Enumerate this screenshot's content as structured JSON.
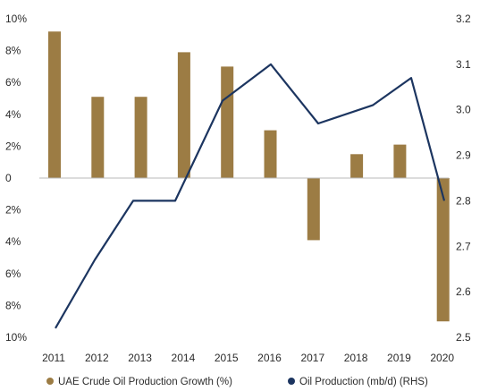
{
  "chart_data": {
    "type": "bar+line",
    "categories": [
      "2011",
      "2012",
      "2013",
      "2014",
      "2015",
      "2016",
      "2017",
      "2018",
      "2019",
      "2020"
    ],
    "left_axis": {
      "ylim": [
        -10,
        10
      ],
      "ticks": [
        10,
        8,
        6,
        4,
        2,
        0,
        -2,
        -4,
        -6,
        -8,
        -10
      ],
      "tick_labels": [
        "10%",
        "8%",
        "6%",
        "4%",
        "2%",
        "0",
        "2%",
        "4%",
        "6%",
        "8%",
        "10%"
      ]
    },
    "right_axis": {
      "ylim": [
        2.5,
        3.2
      ],
      "ticks": [
        3.2,
        3.1,
        3.0,
        2.9,
        2.8,
        2.7,
        2.6,
        2.5
      ],
      "tick_labels": [
        "3.2",
        "3.1",
        "3.0",
        "2.9",
        "2.8",
        "2.7",
        "2.6",
        "2.5"
      ]
    },
    "series": [
      {
        "name": "UAE Crude Oil Production Growth (%)",
        "type": "bar",
        "axis": "left",
        "color": "#9c7c44",
        "values": [
          9.2,
          5.1,
          5.1,
          7.9,
          7.0,
          3.0,
          -3.9,
          1.5,
          2.1,
          -9.0
        ]
      },
      {
        "name": "Oil Production (mb/d) (RHS)",
        "type": "line",
        "axis": "right",
        "color": "#1c3560",
        "values": [
          2.52,
          2.67,
          2.8,
          2.8,
          3.02,
          3.1,
          2.97,
          3.01,
          3.07,
          2.8
        ]
      }
    ],
    "legend_position": "bottom"
  }
}
